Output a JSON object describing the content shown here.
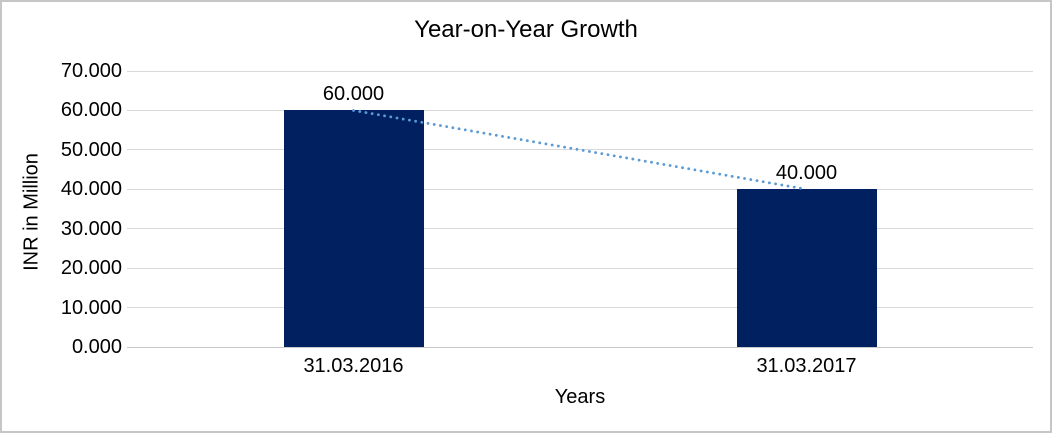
{
  "chart_data": {
    "type": "bar",
    "title": "Year-on-Year Growth",
    "xlabel": "Years",
    "ylabel": "INR in Million",
    "categories": [
      "31.03.2016",
      "31.03.2017"
    ],
    "values": [
      60000,
      40000
    ],
    "value_labels": [
      "60.000",
      "40.000"
    ],
    "y_ticks": [
      "0.000",
      "10.000",
      "20.000",
      "30.000",
      "40.000",
      "50.000",
      "60.000",
      "70.000"
    ],
    "ylim": [
      0,
      70000
    ],
    "grid": true,
    "legend_position": "none",
    "trendline": {
      "type": "linear",
      "style": "dotted",
      "from_value": 60000,
      "to_value": 40000
    },
    "colors": {
      "bar": "#002060",
      "trendline": "#5b9bd5",
      "gridline": "#d9d9d9",
      "axis_line": "#c9c9c9",
      "text": "#000000",
      "background": "#ffffff",
      "border": "#c6c6c6"
    }
  }
}
